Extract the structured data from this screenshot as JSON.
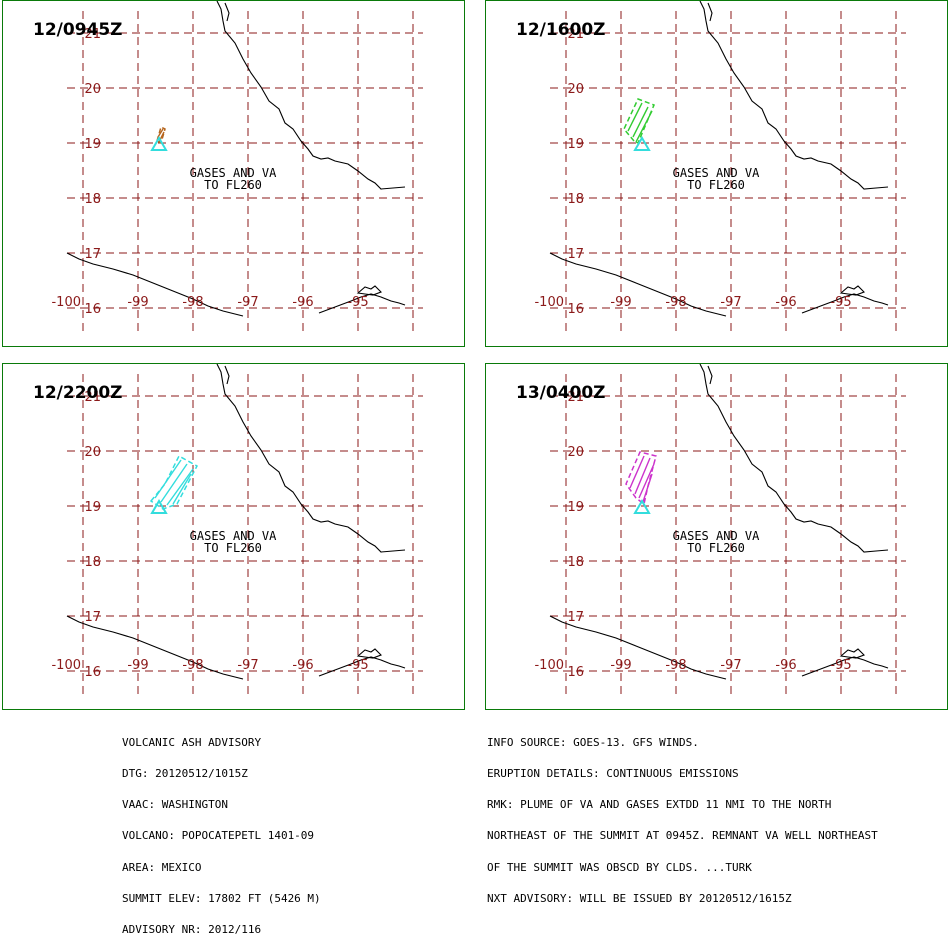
{
  "panels": [
    {
      "time": "12/0945Z",
      "color": "#b5651d",
      "text_line1": "GASES AND VA",
      "text_line2": "TO FL260",
      "plume": "small"
    },
    {
      "time": "12/1600Z",
      "color": "#33cc33",
      "text_line1": "GASES AND VA",
      "text_line2": "TO FL260",
      "plume": "medium"
    },
    {
      "time": "12/2200Z",
      "color": "#33dddd",
      "text_line1": "GASES AND VA",
      "text_line2": "TO FL260",
      "plume": "large"
    },
    {
      "time": "13/0400Z",
      "color": "#cc33cc",
      "text_line1": "GASES AND VA",
      "text_line2": "TO FL260",
      "plume": "medium2"
    }
  ],
  "grid": {
    "lat_labels": [
      "21",
      "20",
      "19",
      "18",
      "17",
      "16"
    ],
    "lon_labels": [
      "-100",
      "-99",
      "-98",
      "-97",
      "-96",
      "-95"
    ],
    "line_color": "#8b1a1a"
  },
  "volcano_marker_color": "#33dddd",
  "advisory_left": [
    "VOLCANIC ASH ADVISORY",
    "DTG: 20120512/1015Z",
    "VAAC: WASHINGTON",
    "VOLCANO: POPOCATEPETL 1401-09",
    "AREA: MEXICO",
    "SUMMIT ELEV: 17802 FT (5426 M)",
    "ADVISORY NR: 2012/116"
  ],
  "advisory_right": [
    "INFO SOURCE: GOES-13. GFS WINDS.",
    "ERUPTION DETAILS: CONTINUOUS EMISSIONS",
    "RMK: PLUME OF VA AND GASES EXTDD 11 NMI TO THE NORTH",
    "NORTHEAST OF THE SUMMIT AT 0945Z. REMNANT VA WELL NORTHEAST",
    "OF THE SUMMIT WAS OBSCD BY CLDS. ...TURK",
    "NXT ADVISORY: WILL BE ISSUED BY 20120512/1615Z"
  ]
}
